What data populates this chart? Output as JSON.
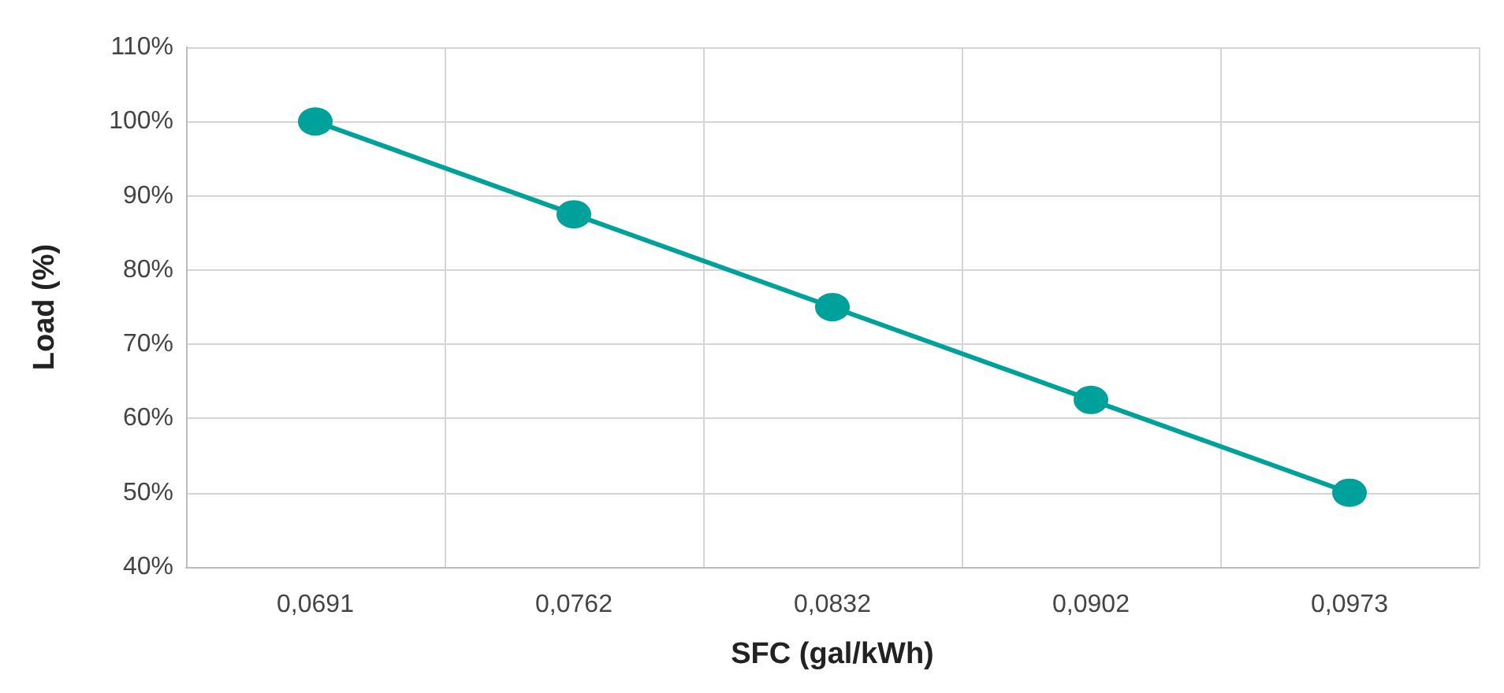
{
  "chart_data": {
    "type": "line",
    "xlabel": "SFC (gal/kWh)",
    "ylabel": "Load (%)",
    "categories": [
      "0,0691",
      "0,0762",
      "0,0832",
      "0,0902",
      "0,0973"
    ],
    "series": [
      {
        "color": "#00a19a",
        "values": [
          100,
          87.5,
          75,
          62.5,
          50
        ]
      }
    ],
    "ylim": [
      40,
      110
    ],
    "yticks": [
      {
        "value": 40,
        "label": "40%"
      },
      {
        "value": 50,
        "label": "50%"
      },
      {
        "value": 60,
        "label": "60%"
      },
      {
        "value": 70,
        "label": "70%"
      },
      {
        "value": 80,
        "label": "80%"
      },
      {
        "value": 90,
        "label": "90%"
      },
      {
        "value": 100,
        "label": "100%"
      },
      {
        "value": 110,
        "label": "110%"
      }
    ],
    "grid": true,
    "marker": "circle",
    "line_style": "solid"
  }
}
